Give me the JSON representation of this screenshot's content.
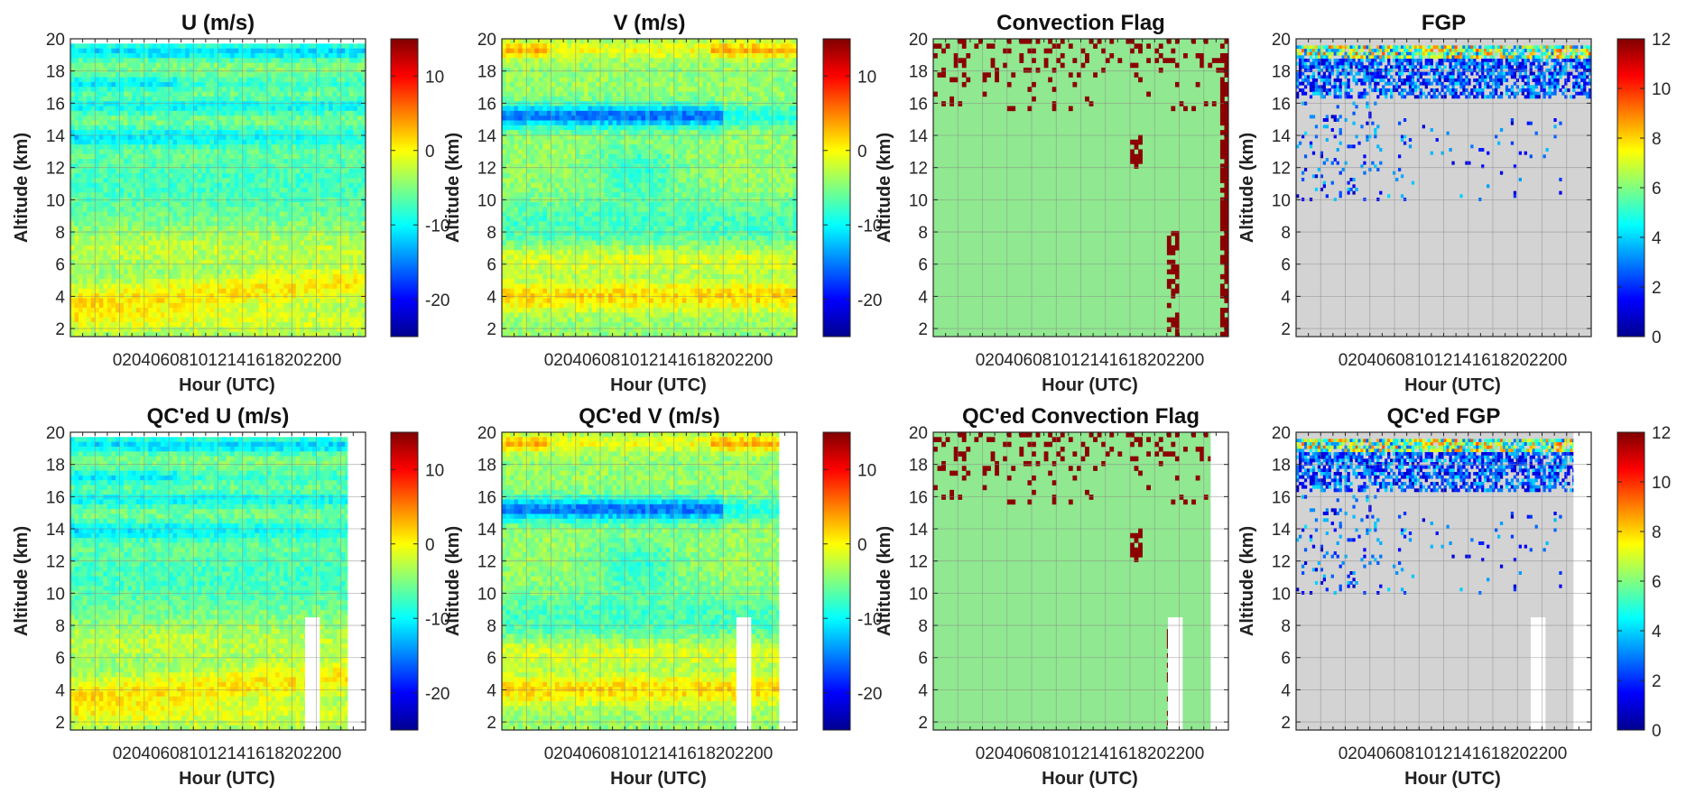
{
  "colors": {
    "jet": [
      "#00008f",
      "#0000ff",
      "#0080ff",
      "#00ffff",
      "#80ff80",
      "#ffff00",
      "#ff8000",
      "#ff0000",
      "#800000"
    ],
    "conv_background": "#90e890",
    "conv_flag": "#8b0000",
    "fgp_background": "#d3d3d3",
    "qc_gap": "#ffffff",
    "grid": "#8a8a8a"
  },
  "axes_text": {
    "ylabel": "Altitude (km)",
    "xlabel": "Hour (UTC)",
    "x_tick_label": "020406081012141618202200",
    "y_ticks": [
      "2",
      "4",
      "6",
      "8",
      "10",
      "12",
      "14",
      "16",
      "18",
      "20"
    ]
  },
  "chart_data": [
    {
      "id": "u",
      "type": "heatmap",
      "title": "U (m/s)",
      "field": "wind_u",
      "qc": false,
      "xlabel": "Hour (UTC)",
      "ylabel": "Altitude (km)",
      "ylim": [
        1.5,
        20
      ],
      "grid": true,
      "colorbar": {
        "ticks": [
          "10",
          "0",
          "-10",
          "-20"
        ],
        "colormap": "jet",
        "range": [
          -25,
          15
        ]
      }
    },
    {
      "id": "v",
      "type": "heatmap",
      "title": "V (m/s)",
      "field": "wind_v",
      "qc": false,
      "xlabel": "Hour (UTC)",
      "ylabel": "Altitude (km)",
      "ylim": [
        1.5,
        20
      ],
      "grid": true,
      "colorbar": {
        "ticks": [
          "10",
          "0",
          "-10",
          "-20"
        ],
        "colormap": "jet",
        "range": [
          -25,
          15
        ]
      }
    },
    {
      "id": "conv",
      "type": "heatmap",
      "title": "Convection Flag",
      "field": "conv_flag",
      "qc": false,
      "xlabel": "Hour (UTC)",
      "ylabel": "Altitude (km)",
      "ylim": [
        1.5,
        20
      ],
      "grid": true
    },
    {
      "id": "fgp",
      "type": "heatmap",
      "title": "FGP",
      "field": "fgp",
      "qc": false,
      "xlabel": "Hour (UTC)",
      "ylabel": "Altitude (km)",
      "ylim": [
        1.5,
        20
      ],
      "grid": true,
      "colorbar": {
        "ticks": [
          "12",
          "10",
          "8",
          "6",
          "4",
          "2",
          "0"
        ],
        "colormap": "jet",
        "range": [
          0,
          12
        ]
      }
    },
    {
      "id": "qc-u",
      "type": "heatmap",
      "title": "QC'ed U (m/s)",
      "field": "wind_u",
      "qc": true,
      "xlabel": "Hour (UTC)",
      "ylabel": "Altitude (km)",
      "ylim": [
        1.5,
        20
      ],
      "grid": true,
      "colorbar": {
        "ticks": [
          "10",
          "0",
          "-10",
          "-20"
        ],
        "colormap": "jet",
        "range": [
          -25,
          15
        ]
      }
    },
    {
      "id": "qc-v",
      "type": "heatmap",
      "title": "QC'ed V (m/s)",
      "field": "wind_v",
      "qc": true,
      "xlabel": "Hour (UTC)",
      "ylabel": "Altitude (km)",
      "ylim": [
        1.5,
        20
      ],
      "grid": true,
      "colorbar": {
        "ticks": [
          "10",
          "0",
          "-10",
          "-20"
        ],
        "colormap": "jet",
        "range": [
          -25,
          15
        ]
      }
    },
    {
      "id": "qc-conv",
      "type": "heatmap",
      "title": "QC'ed Convection Flag",
      "field": "conv_flag",
      "qc": true,
      "xlabel": "Hour (UTC)",
      "ylabel": "Altitude (km)",
      "ylim": [
        1.5,
        20
      ],
      "grid": true
    },
    {
      "id": "qc-fgp",
      "type": "heatmap",
      "title": "QC'ed FGP",
      "field": "fgp",
      "qc": true,
      "xlabel": "Hour (UTC)",
      "ylabel": "Altitude (km)",
      "ylim": [
        1.5,
        20
      ],
      "grid": true,
      "colorbar": {
        "ticks": [
          "12",
          "10",
          "8",
          "6",
          "4",
          "2",
          "0"
        ],
        "colormap": "jet",
        "range": [
          0,
          12
        ]
      }
    }
  ]
}
